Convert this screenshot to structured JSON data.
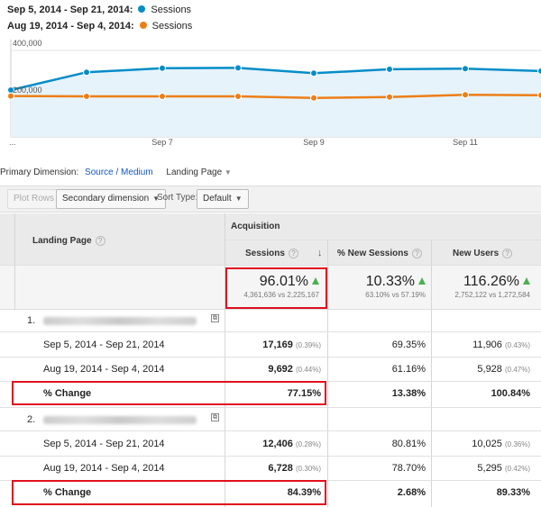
{
  "legend": [
    {
      "range": "Sep 5, 2014 - Sep 21, 2014:",
      "series": "Sessions",
      "color": "#058dc7"
    },
    {
      "range": "Aug 19, 2014 - Sep 4, 2014:",
      "series": "Sessions",
      "color": "#ed7e17"
    }
  ],
  "chart_data": {
    "type": "line",
    "x": [
      "Sep 5",
      "Sep 6",
      "Sep 7",
      "Sep 8",
      "Sep 9",
      "Sep 10",
      "Sep 11",
      "Sep 12"
    ],
    "x_tick_labels": [
      "...",
      "Sep 7",
      "Sep 9",
      "Sep 11"
    ],
    "y_tick_labels": [
      "400,000",
      "200,000"
    ],
    "ylim": [
      0,
      400000
    ],
    "series": [
      {
        "name": "Sep 5, 2014 - Sep 21, 2014",
        "color": "#058dc7",
        "values": [
          200000,
          290000,
          310000,
          312000,
          285000,
          305000,
          308000,
          296000
        ]
      },
      {
        "name": "Aug 19, 2014 - Sep 4, 2014",
        "color": "#ed7e17",
        "values": [
          170000,
          168000,
          168000,
          168000,
          160000,
          165000,
          176000,
          174000
        ]
      }
    ],
    "area_fill": "#e6f3fa",
    "grid": true
  },
  "dimension": {
    "label": "Primary Dimension:",
    "option_link": "Source / Medium",
    "option_active": "Landing Page",
    "caret": "▼"
  },
  "toolbar": {
    "plot_rows": "Plot Rows",
    "secondary_dimension": "Secondary dimension",
    "sort_type_label": "Sort Type:",
    "sort_type_value": "Default",
    "caret": "▼"
  },
  "table": {
    "landing_page_header": "Landing Page",
    "group_header": "Acquisition",
    "col_sessions": "Sessions",
    "col_new_sessions": "% New Sessions",
    "col_new_users": "New Users",
    "help_glyph": "?",
    "sort_glyph": "↓",
    "ext_glyph": "⧉",
    "totals": {
      "sessions": "96.01%",
      "sessions_sub": "4,361,636 vs 2,225,167",
      "new_sessions": "10.33%",
      "new_sessions_sub": "63.10% vs 57.19%",
      "new_users": "116.26%",
      "new_users_sub": "2,752,122 vs 1,272,584"
    },
    "rows": [
      {
        "index": "1.",
        "periods": [
          {
            "label": "Sep 5, 2014 - Sep 21, 2014",
            "sessions": "17,169",
            "sessions_pct": "(0.39%)",
            "new_sessions": "69.35%",
            "new_users": "11,906",
            "new_users_pct": "(0.43%)"
          },
          {
            "label": "Aug 19, 2014 - Sep 4, 2014",
            "sessions": "9,692",
            "sessions_pct": "(0.44%)",
            "new_sessions": "61.16%",
            "new_users": "5,928",
            "new_users_pct": "(0.47%)"
          }
        ],
        "change": {
          "label": "% Change",
          "sessions": "77.15%",
          "new_sessions": "13.38%",
          "new_users": "100.84%"
        }
      },
      {
        "index": "2.",
        "periods": [
          {
            "label": "Sep 5, 2014 - Sep 21, 2014",
            "sessions": "12,406",
            "sessions_pct": "(0.28%)",
            "new_sessions": "80.81%",
            "new_users": "10,025",
            "new_users_pct": "(0.36%)"
          },
          {
            "label": "Aug 19, 2014 - Sep 4, 2014",
            "sessions": "6,728",
            "sessions_pct": "(0.30%)",
            "new_sessions": "78.70%",
            "new_users": "5,295",
            "new_users_pct": "(0.42%)"
          }
        ],
        "change": {
          "label": "% Change",
          "sessions": "84.39%",
          "new_sessions": "2.68%",
          "new_users": "89.33%"
        }
      }
    ]
  }
}
